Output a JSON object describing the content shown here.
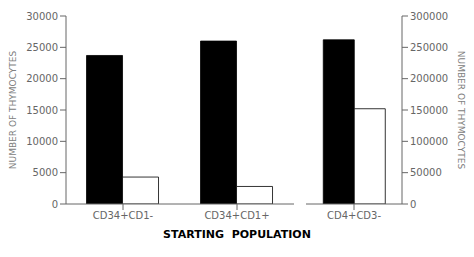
{
  "chart_data": [
    {
      "type": "bar",
      "categories": [
        "CD34+CD1-",
        "CD34+CD1+"
      ],
      "series": [
        {
          "color": "#000000",
          "values": [
            23700,
            26000
          ]
        },
        {
          "color": "#ffffff",
          "values": [
            4300,
            2800
          ]
        }
      ],
      "ylabel": "NUMBER OF THYMOCYTES",
      "ylim": [
        0,
        30000
      ],
      "yticks": [
        0,
        5000,
        10000,
        15000,
        20000,
        25000,
        30000
      ],
      "grid": false,
      "xlabel": "STARTING  POPULATION"
    },
    {
      "type": "bar",
      "categories": [
        "CD4+CD3-"
      ],
      "series": [
        {
          "color": "#000000",
          "values": [
            262000
          ]
        },
        {
          "color": "#ffffff",
          "values": [
            152000
          ]
        }
      ],
      "ylabel": "NUMBER OF THYMOCYTES",
      "ylim": [
        0,
        300000
      ],
      "yticks": [
        0,
        50000,
        100000,
        150000,
        200000,
        250000,
        300000
      ],
      "grid": false
    }
  ]
}
